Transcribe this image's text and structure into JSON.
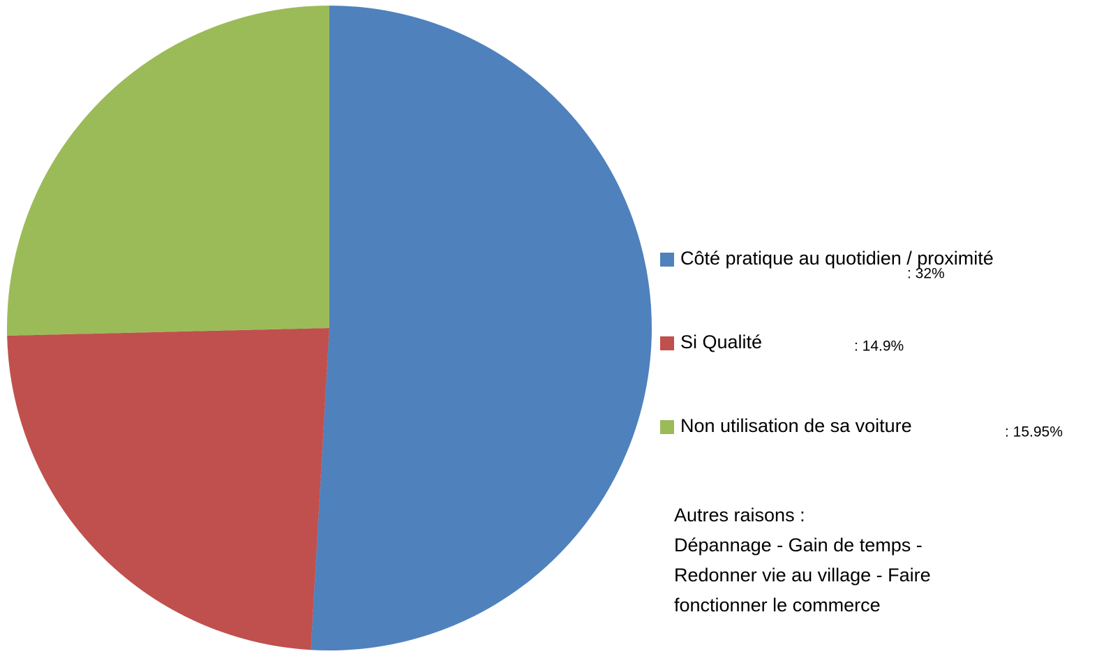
{
  "chart_data": {
    "type": "pie",
    "categories": [
      "Côté pratique au quotidien / proximité",
      "Si Qualité",
      "Non utilisation de sa voiture"
    ],
    "values": [
      32,
      14.9,
      15.95
    ],
    "value_labels": [
      ":  32%",
      ": 14.9%",
      ": 15.95%"
    ],
    "colors": [
      "#4f81bd",
      "#c0504d",
      "#9bbb59"
    ],
    "annotation": [
      "Autres raisons :",
      "Dépannage - Gain de temps -",
      "Redonner vie au village - Faire",
      "fonctionner  le commerce"
    ]
  }
}
